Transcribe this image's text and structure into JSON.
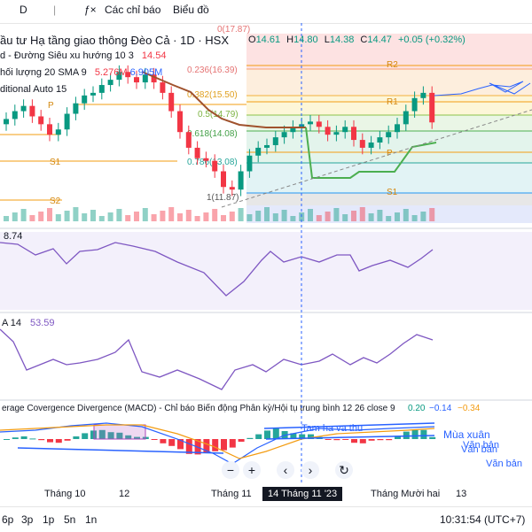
{
  "toolbar": {
    "item1": "D",
    "item2": "Các chỉ báo",
    "item3": "Biểu đồ"
  },
  "legend": {
    "title": "ầu tư Hạ tầng giao thông Đèo Cả · 1D · HSX",
    "open_label": "O",
    "open": "14.61",
    "high_label": "H",
    "high": "14.80",
    "low_label": "L",
    "low": "14.38",
    "close_label": "C",
    "close": "14.47",
    "change": "+0.05 (+0.32%)",
    "supertrend": "d - Đường Siêu xu hướng 10 3",
    "supertrend_value": "14.54",
    "volume": "hối lượng 20 SMA 9",
    "volume_v1": "5.276M",
    "volume_v2": "6.905M",
    "pivot": "ditional Auto 15"
  },
  "fib": {
    "l236": "0.236(16.39)",
    "l382": "0.382(15.50)",
    "l5": "0.5(14.79)",
    "l618": "0.618(14.08)",
    "l786": "0.786(13.08)",
    "l1": "1(11.87)",
    "l0": "0(17.87)"
  },
  "pivots": {
    "r2": "R2",
    "r1": "R1",
    "p_left": "P",
    "p_right": "P",
    "s1_left": "S1",
    "s1_right": "S1",
    "s2": "S2"
  },
  "rsi": {
    "value_label": "8.74"
  },
  "adx": {
    "label": "A 14",
    "value": "53.59"
  },
  "macd": {
    "title": "erage Covergence Divergence (MACD) - Chỉ báo Biến động Phân kỳ/Hội tụ trung bình 12 26 close 9",
    "v1": "0.20",
    "v2": "−0.14",
    "v3": "−0.34"
  },
  "annotations": {
    "a1": "Tam ha va thu",
    "a2": "Mùa xuân",
    "a3": "Văn bản",
    "a4": "Văn bản",
    "a5": "Văn bản"
  },
  "xaxis": {
    "t1": "Tháng 10",
    "t2": "12",
    "t3": "Tháng 11",
    "cursor": "14 Tháng 11 '23",
    "t4": "Tháng Mười hai",
    "t5": "13"
  },
  "bottom": {
    "r1": "6p",
    "r2": "3p",
    "r3": "1p",
    "r4": "5n",
    "r5": "1n",
    "time": "10:31:54 (UTC+7)"
  },
  "colors": {
    "up": "#089981",
    "down": "#f23645",
    "accent": "#2962ff",
    "supertrend_down": "#a0522d",
    "supertrend_up": "#4caf50"
  },
  "chart_data": {
    "type": "candlestick",
    "candles_count": 50,
    "closes": [
      14.6,
      14.9,
      15.1,
      14.7,
      14.4,
      14.0,
      14.2,
      14.8,
      15.2,
      15.5,
      15.6,
      15.9,
      16.1,
      16.4,
      16.2,
      16.0,
      16.3,
      16.0,
      15.6,
      14.9,
      14.1,
      13.5,
      13.1,
      13.0,
      12.6,
      12.0,
      11.9,
      12.6,
      13.2,
      13.5,
      13.6,
      13.9,
      14.1,
      14.3,
      14.4,
      14.5,
      14.3,
      14.0,
      14.1,
      14.3,
      13.8,
      13.5,
      13.7,
      13.9,
      14.1,
      14.4,
      14.9,
      15.4,
      15.6,
      14.47
    ],
    "price_range": [
      11.5,
      18.0
    ]
  }
}
